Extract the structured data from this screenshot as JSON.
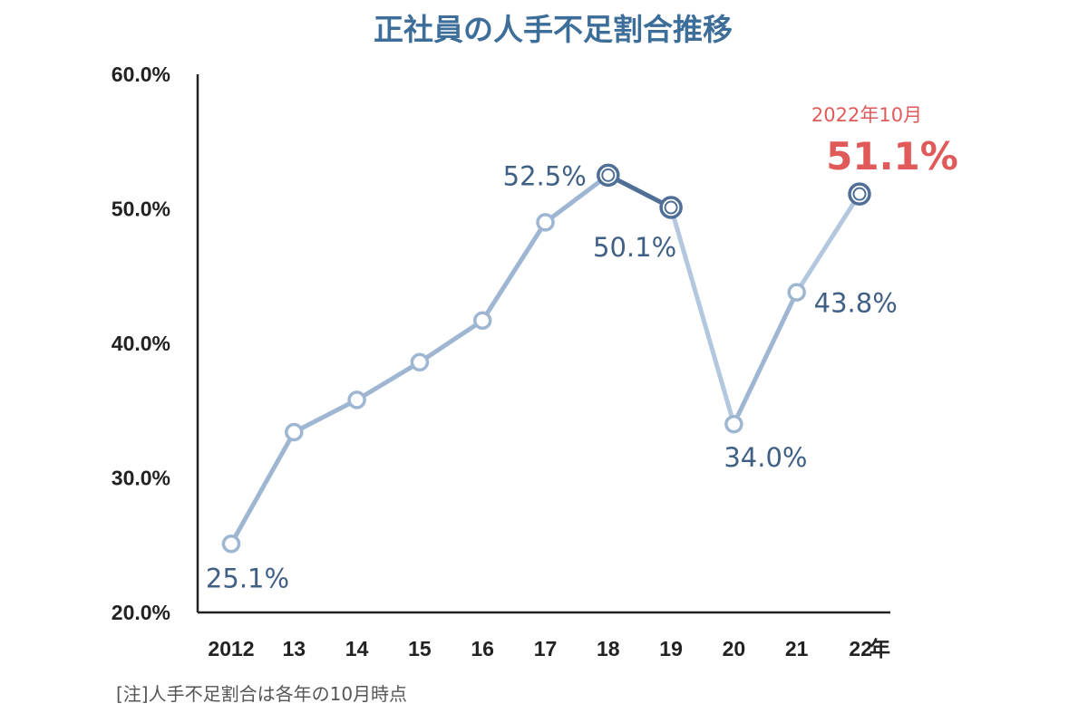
{
  "colors": {
    "title": "#3d6e99",
    "line": "#9eb6d2",
    "line_dark": "#4f6f97",
    "label": "#3f5f85",
    "highlight": "#e05a5a",
    "axis": "#222222"
  },
  "chart_data": {
    "type": "line",
    "title": "正社員の人手不足割合推移",
    "categories": [
      "2012",
      "13",
      "14",
      "15",
      "16",
      "17",
      "18",
      "19",
      "20",
      "21",
      "22"
    ],
    "x_unit": "年",
    "series": [
      {
        "values": [
          25.1,
          33.4,
          35.8,
          38.6,
          41.7,
          49.0,
          52.5,
          50.1,
          34.0,
          43.8,
          51.1
        ]
      }
    ],
    "y_ticks": [
      "20.0%",
      "30.0%",
      "40.0%",
      "50.0%",
      "60.0%"
    ],
    "ylim": [
      20,
      60
    ],
    "grid": false,
    "data_labels": [
      {
        "index": 0,
        "text": "25.1%"
      },
      {
        "index": 6,
        "text": "52.5%"
      },
      {
        "index": 7,
        "text": "50.1%"
      },
      {
        "index": 8,
        "text": "34.0%"
      },
      {
        "index": 9,
        "text": "43.8%"
      }
    ],
    "highlight": {
      "index": 10,
      "date": "2022年10月",
      "value_text": "51.1%"
    },
    "note": "[注]人手不足割合は各年の10月時点"
  }
}
